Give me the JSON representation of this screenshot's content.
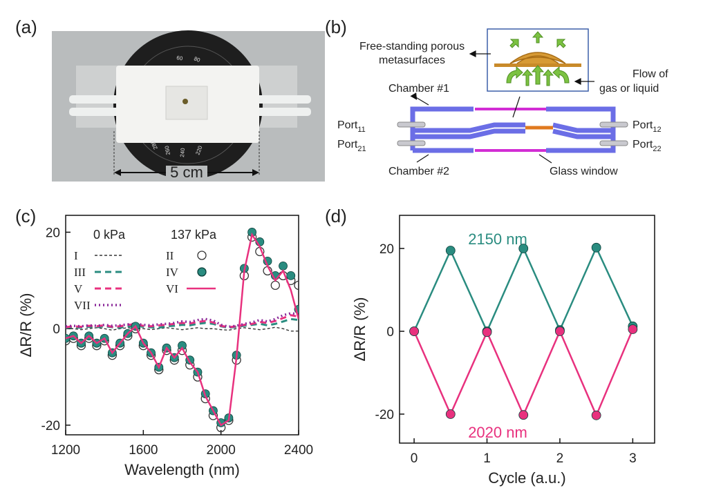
{
  "panels": {
    "a": {
      "label": "(a)",
      "scale_label": "5 cm",
      "dial_labels": [
        "60",
        "80",
        "220",
        "240",
        "260",
        "280"
      ]
    },
    "b": {
      "label": "(b)",
      "metasurface_label": [
        "Free-standing porous",
        "metasurfaces"
      ],
      "flow_label": [
        "Flow of",
        "gas or liquid"
      ],
      "chamber_1": "Chamber #1",
      "chamber_2": "Chamber #2",
      "window_label": "Glass window",
      "ports": [
        {
          "text": "Port",
          "sub": "11"
        },
        {
          "text": "Port",
          "sub": "21"
        },
        {
          "text": "Port",
          "sub": "12"
        },
        {
          "text": "Port",
          "sub": "22"
        }
      ]
    }
  },
  "chart_data": [
    {
      "type": "line",
      "panel_label": "(c)",
      "xlabel": "Wavelength (nm)",
      "ylabel": "ΔR/R (%)",
      "xlim": [
        1200,
        2400
      ],
      "ylim": [
        -22,
        23.5
      ],
      "xticks": [
        1200,
        1600,
        2000,
        2400
      ],
      "yticks": [
        -20,
        0,
        20
      ],
      "legend_headers": [
        "0 kPa",
        "137 kPa"
      ],
      "x": [
        1200,
        1240,
        1280,
        1320,
        1360,
        1400,
        1440,
        1480,
        1520,
        1560,
        1600,
        1640,
        1680,
        1720,
        1760,
        1800,
        1840,
        1880,
        1920,
        1960,
        2000,
        2040,
        2080,
        2120,
        2160,
        2200,
        2240,
        2280,
        2320,
        2360,
        2400
      ],
      "series": [
        {
          "name": "I",
          "color": "#333333",
          "line": "dashed-thin",
          "values": [
            0,
            0,
            -0.2,
            0,
            0.2,
            0,
            -0.3,
            0,
            0.2,
            0,
            0,
            -0.2,
            0,
            0.2,
            0,
            -0.2,
            0,
            0.2,
            0,
            0,
            -0.2,
            -0.3,
            0,
            0.2,
            0,
            -0.2,
            0,
            0.3,
            0,
            -0.5,
            -0.5
          ]
        },
        {
          "name": "III",
          "color": "#2a8c80",
          "line": "dashed",
          "values": [
            0.2,
            0.3,
            0.2,
            0.4,
            0.3,
            0.5,
            0.3,
            0.2,
            0.5,
            0.6,
            0.4,
            0.3,
            0.2,
            0.5,
            0.6,
            0.8,
            0.7,
            1,
            1.2,
            1,
            0.5,
            0.2,
            0.4,
            0.6,
            0.8,
            1,
            0.7,
            1,
            1.5,
            2,
            1.8
          ]
        },
        {
          "name": "V",
          "color": "#e8317e",
          "line": "dashed",
          "values": [
            0.3,
            0.5,
            0.4,
            0.6,
            0.5,
            0.7,
            0.4,
            0.5,
            0.8,
            0.9,
            0.6,
            0.5,
            0.7,
            0.8,
            1,
            1.2,
            1.1,
            1.4,
            1.6,
            1.3,
            0.6,
            0.3,
            0.5,
            0.8,
            1,
            1.4,
            1.2,
            1.6,
            2.2,
            2.8,
            2.5
          ]
        },
        {
          "name": "VII",
          "color": "#8b2a9a",
          "line": "dotted",
          "values": [
            0.5,
            0.6,
            0.5,
            0.7,
            0.6,
            0.8,
            0.6,
            0.7,
            0.9,
            1,
            0.8,
            0.7,
            0.9,
            1,
            1.2,
            1.5,
            1.4,
            1.8,
            2,
            1.7,
            0.8,
            0.4,
            0.6,
            1,
            1.3,
            1.8,
            1.5,
            2,
            2.8,
            3.2,
            3
          ]
        },
        {
          "name": "II",
          "color": "#333333",
          "marker": "open",
          "values": [
            -2.5,
            -2,
            -3.5,
            -2,
            -3.5,
            -2.5,
            -5.5,
            -3.5,
            -1.5,
            0,
            -3.5,
            -5.5,
            -8.5,
            -4.5,
            -6.5,
            -4.5,
            -7.5,
            -10,
            -14.5,
            -18,
            -20.5,
            -19,
            -6.5,
            11,
            19,
            16,
            12,
            9,
            11,
            10,
            9
          ]
        },
        {
          "name": "IV",
          "color": "#2a8c80",
          "marker": "filled",
          "values": [
            -2,
            -1.5,
            -3,
            -1.5,
            -3,
            -2,
            -5,
            -3,
            -1,
            0.5,
            -3,
            -5,
            -8,
            -4,
            -6,
            -3.5,
            -6.5,
            -9,
            -13.5,
            -17,
            -19.5,
            -18.5,
            -5.5,
            12.5,
            20,
            18,
            14,
            11,
            13,
            11,
            4
          ]
        },
        {
          "name": "VI",
          "color": "#e8317e",
          "line": "solid",
          "values": [
            -2,
            -1.5,
            -3,
            -1.5,
            -3,
            -2,
            -5,
            -3,
            -1,
            0.5,
            -3,
            -5,
            -8,
            -4,
            -6,
            -4,
            -7,
            -9,
            -14,
            -17,
            -20,
            -19,
            -6,
            12,
            19.5,
            17,
            13,
            10,
            12,
            8,
            2
          ]
        }
      ]
    },
    {
      "type": "line",
      "panel_label": "(d)",
      "xlabel": "Cycle (a.u.)",
      "ylabel": "ΔR/R (%)",
      "xlim": [
        -0.2,
        3.3
      ],
      "ylim": [
        -27,
        28
      ],
      "xticks": [
        0,
        1,
        2,
        3
      ],
      "yticks": [
        -20,
        0,
        20
      ],
      "x": [
        0,
        0.5,
        1,
        1.5,
        2,
        2.5,
        3
      ],
      "series": [
        {
          "name": "2150 nm",
          "color": "#2a8c80",
          "line": "solid",
          "marker": "filled",
          "values": [
            0,
            19.5,
            0,
            20,
            0.3,
            20.2,
            1.2
          ]
        },
        {
          "name": "2020 nm",
          "color": "#e8317e",
          "line": "solid",
          "marker": "filled",
          "values": [
            0,
            -20,
            -0.2,
            -20.2,
            0,
            -20.3,
            0.5
          ]
        }
      ]
    }
  ]
}
